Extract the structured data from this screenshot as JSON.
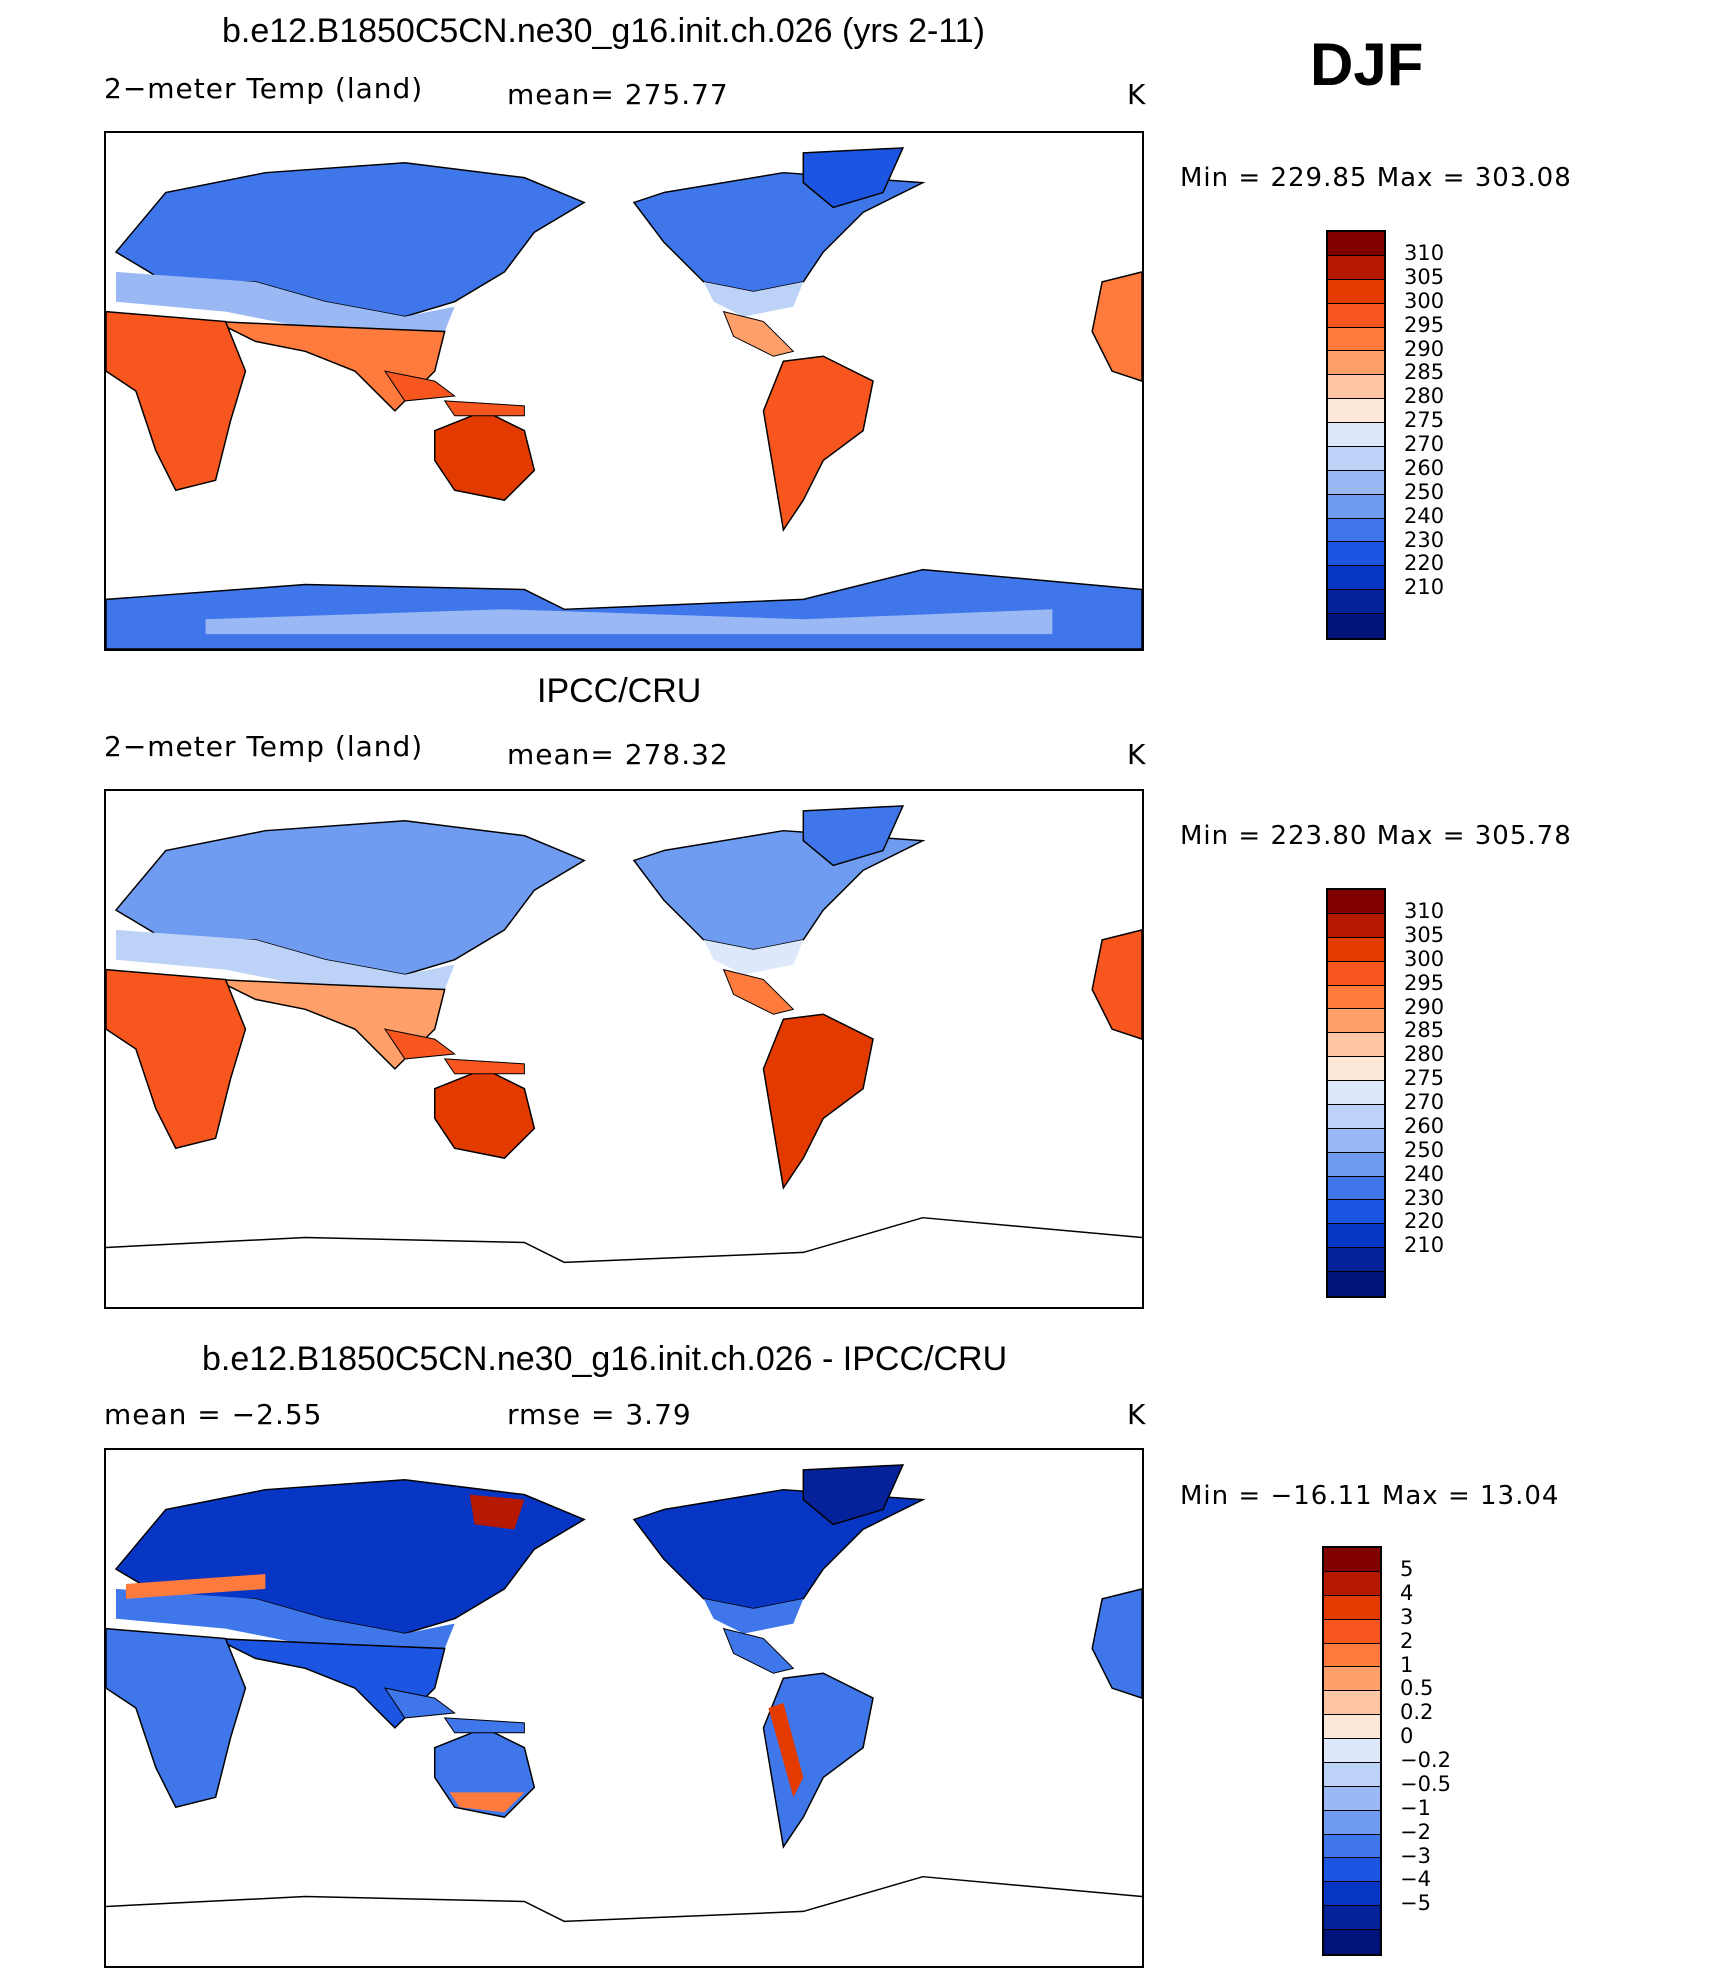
{
  "season": "DJF",
  "colors": {
    "temp_scale": [
      "#e9f3ff"
    ],
    "diff_scale": [
      "#e9f3ff"
    ]
  },
  "panels": [
    {
      "id": "model",
      "title": "b.e12.B1850C5CN.ne30_g16.init.ch.026 (yrs 2-11)",
      "left_label": "2−meter Temp (land)",
      "mid_label": "mean=  275.77",
      "unit": "K",
      "minmax": "Min  =  229.85  Max  =  303.08",
      "colorbar_ticks": [
        "310",
        "305",
        "300",
        "295",
        "290",
        "285",
        "280",
        "275",
        "270",
        "260",
        "250",
        "240",
        "230",
        "220",
        "210"
      ],
      "colorbar_colors": [
        "#800000",
        "#b51a00",
        "#e33a00",
        "#f7571e",
        "#ff7a3d",
        "#ff9f6a",
        "#ffc6a6",
        "#fde7d6",
        "#dde9fb",
        "#bcd2f7",
        "#9ab9f4",
        "#6f9cf0",
        "#3f77eb",
        "#1b55e2",
        "#0836c4",
        "#05229a",
        "#00137a"
      ]
    },
    {
      "id": "obs",
      "title": "IPCC/CRU",
      "left_label": "2−meter Temp (land)",
      "mid_label": "mean=  278.32",
      "unit": "K",
      "minmax": "Min  =  223.80  Max  =  305.78",
      "colorbar_ticks": [
        "310",
        "305",
        "300",
        "295",
        "290",
        "285",
        "280",
        "275",
        "270",
        "260",
        "250",
        "240",
        "230",
        "220",
        "210"
      ],
      "colorbar_colors": [
        "#800000",
        "#b51a00",
        "#e33a00",
        "#f7571e",
        "#ff7a3d",
        "#ff9f6a",
        "#ffc6a6",
        "#fde7d6",
        "#dde9fb",
        "#bcd2f7",
        "#9ab9f4",
        "#6f9cf0",
        "#3f77eb",
        "#1b55e2",
        "#0836c4",
        "#05229a",
        "#00137a"
      ]
    },
    {
      "id": "diff",
      "title": "b.e12.B1850C5CN.ne30_g16.init.ch.026 - IPCC/CRU",
      "left_label": "mean  =     −2.55",
      "mid_label": "rmse  =      3.79",
      "unit": "K",
      "minmax": "Min  =  −16.11  Max  =     13.04",
      "colorbar_ticks": [
        "5",
        "4",
        "3",
        "2",
        "1",
        "0.5",
        "0.2",
        "0",
        "−0.2",
        "−0.5",
        "−1",
        "−2",
        "−3",
        "−4",
        "−5"
      ],
      "colorbar_colors": [
        "#800000",
        "#b51a00",
        "#e33a00",
        "#f7571e",
        "#ff7a3d",
        "#ff9f6a",
        "#ffc6a6",
        "#fde7d6",
        "#dde9fb",
        "#bcd2f7",
        "#9ab9f4",
        "#6f9cf0",
        "#3f77eb",
        "#1b55e2",
        "#0836c4",
        "#05229a",
        "#00137a"
      ]
    }
  ],
  "chart_data": [
    {
      "type": "heatmap",
      "title": "b.e12.B1850C5CN.ne30_g16.init.ch.026 (yrs 2-11)",
      "variable": "2−meter Temp (land)",
      "units": "K",
      "mean": 275.77,
      "min": 229.85,
      "max": 303.08,
      "levels": [
        210,
        220,
        230,
        240,
        250,
        260,
        270,
        275,
        280,
        285,
        290,
        295,
        300,
        305,
        310
      ]
    },
    {
      "type": "heatmap",
      "title": "IPCC/CRU",
      "variable": "2−meter Temp (land)",
      "units": "K",
      "mean": 278.32,
      "min": 223.8,
      "max": 305.78,
      "levels": [
        210,
        220,
        230,
        240,
        250,
        260,
        270,
        275,
        280,
        285,
        290,
        295,
        300,
        305,
        310
      ]
    },
    {
      "type": "heatmap",
      "title": "b.e12.B1850C5CN.ne30_g16.init.ch.026 - IPCC/CRU",
      "units": "K",
      "mean": -2.55,
      "rmse": 3.79,
      "min": -16.11,
      "max": 13.04,
      "levels": [
        -5,
        -4,
        -3,
        -2,
        -1,
        -0.5,
        -0.2,
        0,
        0.2,
        0.5,
        1,
        2,
        3,
        4,
        5
      ]
    }
  ]
}
